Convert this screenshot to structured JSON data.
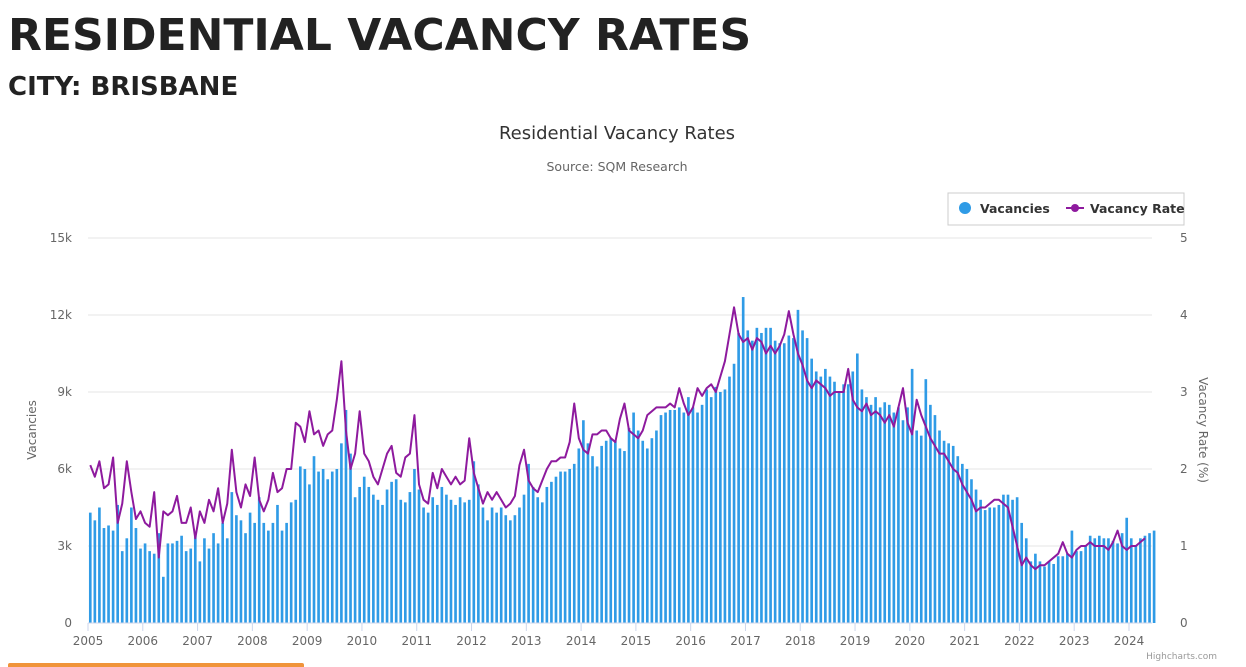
{
  "page": {
    "title": "RESIDENTIAL VACANCY RATES",
    "city": "CITY: BRISBANE"
  },
  "chart_data": {
    "type": "bar+line",
    "title": "Residential Vacancy Rates",
    "subtitle": "Source: SQM Research",
    "credits": "Highcharts.com",
    "legend_position": "top-right",
    "colors": {
      "bars": "#2f9be6",
      "line": "#8e1a9e",
      "grid": "#e6e6e6",
      "axis": "#666666"
    },
    "x_axis": {
      "range": [
        2005.0,
        2024.42
      ],
      "tick_labels": [
        "2005",
        "2006",
        "2007",
        "2008",
        "2009",
        "2010",
        "2011",
        "2012",
        "2013",
        "2014",
        "2015",
        "2016",
        "2017",
        "2018",
        "2019",
        "2020",
        "2021",
        "2022",
        "2023",
        "2024"
      ]
    },
    "y_left": {
      "label": "Vacancies",
      "range": [
        0,
        15000
      ],
      "ticks": [
        0,
        3000,
        6000,
        9000,
        12000,
        15000
      ],
      "tick_labels": [
        "0",
        "3k",
        "6k",
        "9k",
        "12k",
        "15k"
      ]
    },
    "y_right": {
      "label": "Vacancy Rate (%)",
      "range": [
        0,
        5
      ],
      "ticks": [
        0,
        1,
        2,
        3,
        4,
        5
      ],
      "tick_labels": [
        "0",
        "1",
        "2",
        "3",
        "4",
        "5"
      ]
    },
    "series": [
      {
        "name": "Vacancies",
        "type": "column",
        "axis": "left",
        "start": "2005-01",
        "step": "month",
        "values": [
          4300,
          4000,
          4500,
          3700,
          3800,
          3600,
          4600,
          2800,
          3300,
          4500,
          3700,
          2900,
          3100,
          2800,
          2700,
          3500,
          1800,
          3100,
          3100,
          3200,
          3400,
          2800,
          2900,
          3400,
          2400,
          3300,
          2900,
          3500,
          3100,
          3900,
          3300,
          5100,
          4200,
          4000,
          3500,
          4300,
          3900,
          4900,
          3900,
          3600,
          3900,
          4600,
          3600,
          3900,
          4700,
          4800,
          6100,
          6000,
          5400,
          6500,
          5900,
          6000,
          5600,
          5900,
          6000,
          7000,
          8300,
          6600,
          4900,
          5300,
          5700,
          5300,
          5000,
          4800,
          4600,
          5200,
          5500,
          5600,
          4800,
          4700,
          5100,
          6000,
          5200,
          4500,
          4300,
          4900,
          4600,
          5300,
          5000,
          4800,
          4600,
          4900,
          4700,
          4800,
          6300,
          5400,
          4500,
          4000,
          4500,
          4300,
          4500,
          4200,
          4000,
          4200,
          4500,
          5000,
          6200,
          5300,
          4900,
          4700,
          5300,
          5500,
          5700,
          5900,
          5900,
          6000,
          6200,
          6800,
          7900,
          7000,
          6500,
          6100,
          6900,
          7100,
          7200,
          7100,
          6800,
          6700,
          7600,
          8200,
          7500,
          7100,
          6800,
          7200,
          7500,
          8100,
          8200,
          8300,
          8300,
          8400,
          8200,
          8800,
          8400,
          8200,
          8500,
          9100,
          8800,
          9200,
          9000,
          9100,
          9600,
          10100,
          11300,
          12700,
          11400,
          11000,
          11500,
          11300,
          11500,
          11500,
          11000,
          10900,
          10900,
          11200,
          11100,
          12200,
          11400,
          11100,
          10300,
          9800,
          9600,
          9900,
          9600,
          9400,
          9000,
          9300,
          9300,
          9800,
          10500,
          9100,
          8800,
          8500,
          8800,
          8400,
          8600,
          8500,
          8200,
          8400,
          7900,
          8400,
          9900,
          7500,
          7300,
          9500,
          8500,
          8100,
          7500,
          7100,
          7000,
          6900,
          6500,
          6200,
          6000,
          5600,
          5200,
          4800,
          4400,
          4500,
          4500,
          4600,
          5000,
          5000,
          4800,
          4900,
          3900,
          3300,
          2400,
          2700,
          2400,
          2200,
          2400,
          2300,
          2600,
          2600,
          2700,
          3600,
          2800,
          2800,
          3000,
          3400,
          3300,
          3400,
          3300,
          3300,
          3200,
          3100,
          3500,
          4100,
          3300,
          3000,
          3300,
          3400,
          3500,
          3600
        ]
      },
      {
        "name": "Vacancy Rate",
        "type": "line",
        "axis": "right",
        "start": "2005-01",
        "step": "month",
        "values": [
          2.05,
          1.9,
          2.1,
          1.75,
          1.8,
          2.15,
          1.3,
          1.55,
          2.1,
          1.7,
          1.35,
          1.45,
          1.3,
          1.25,
          1.7,
          0.85,
          1.45,
          1.4,
          1.45,
          1.65,
          1.3,
          1.3,
          1.5,
          1.1,
          1.45,
          1.3,
          1.6,
          1.45,
          1.75,
          1.3,
          1.55,
          2.25,
          1.7,
          1.5,
          1.8,
          1.65,
          2.15,
          1.6,
          1.45,
          1.6,
          1.95,
          1.7,
          1.75,
          2.0,
          2.0,
          2.6,
          2.55,
          2.35,
          2.75,
          2.45,
          2.5,
          2.3,
          2.45,
          2.5,
          2.9,
          3.4,
          2.5,
          2.0,
          2.2,
          2.75,
          2.2,
          2.1,
          1.9,
          1.8,
          2.0,
          2.2,
          2.3,
          1.95,
          1.9,
          2.15,
          2.2,
          2.7,
          1.8,
          1.6,
          1.55,
          1.95,
          1.75,
          2.0,
          1.9,
          1.8,
          1.9,
          1.8,
          1.85,
          2.4,
          1.95,
          1.75,
          1.55,
          1.7,
          1.6,
          1.7,
          1.6,
          1.5,
          1.55,
          1.65,
          2.05,
          2.25,
          1.85,
          1.75,
          1.7,
          1.85,
          2.0,
          2.1,
          2.1,
          2.15,
          2.15,
          2.35,
          2.85,
          2.4,
          2.25,
          2.2,
          2.45,
          2.45,
          2.5,
          2.5,
          2.4,
          2.35,
          2.65,
          2.85,
          2.5,
          2.45,
          2.4,
          2.5,
          2.7,
          2.75,
          2.8,
          2.8,
          2.8,
          2.85,
          2.8,
          3.05,
          2.85,
          2.7,
          2.8,
          3.05,
          2.95,
          3.05,
          3.1,
          3.0,
          3.2,
          3.4,
          3.75,
          4.1,
          3.75,
          3.65,
          3.7,
          3.55,
          3.7,
          3.65,
          3.5,
          3.6,
          3.5,
          3.6,
          3.75,
          4.05,
          3.75,
          3.5,
          3.35,
          3.15,
          3.05,
          3.15,
          3.1,
          3.05,
          2.95,
          3.0,
          3.0,
          3.0,
          3.3,
          2.9,
          2.8,
          2.75,
          2.85,
          2.7,
          2.75,
          2.7,
          2.6,
          2.7,
          2.55,
          2.8,
          3.05,
          2.6,
          2.45,
          2.9,
          2.7,
          2.55,
          2.4,
          2.3,
          2.2,
          2.2,
          2.1,
          2.0,
          1.95,
          1.8,
          1.7,
          1.6,
          1.45,
          1.5,
          1.5,
          1.55,
          1.6,
          1.6,
          1.55,
          1.5,
          1.25,
          1.0,
          0.75,
          0.85,
          0.75,
          0.7,
          0.75,
          0.75,
          0.8,
          0.85,
          0.9,
          1.05,
          0.9,
          0.85,
          0.95,
          1.0,
          1.0,
          1.05,
          1.0,
          1.0,
          1.0,
          0.95,
          1.05,
          1.2,
          1.0,
          0.95,
          1.0,
          1.0,
          1.05,
          1.1
        ]
      }
    ]
  }
}
